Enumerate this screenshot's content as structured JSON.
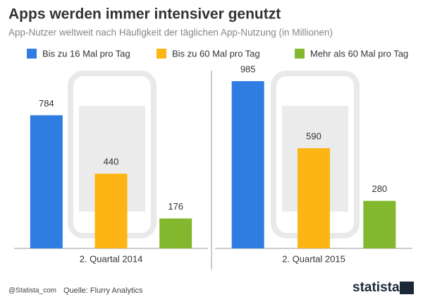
{
  "chart_data": {
    "type": "bar",
    "title": "Apps werden immer intensiver genutzt",
    "subtitle": "App-Nutzer weltweit nach Häufigkeit der täglichen App-Nutzung (in Millionen)",
    "categories": [
      "2. Quartal 2014",
      "2. Quartal 2015"
    ],
    "series": [
      {
        "name": "Bis zu 16 Mal pro Tag",
        "color": "#2f7de1",
        "values": [
          784,
          985
        ]
      },
      {
        "name": "Bis zu 60 Mal pro Tag",
        "color": "#fdb515",
        "values": [
          440,
          590
        ]
      },
      {
        "name": "Mehr als 60 Mal pro Tag",
        "color": "#83b82e",
        "values": [
          176,
          280
        ]
      }
    ],
    "credit": "@Statista_com",
    "source": "Quelle: Flurry Analytics",
    "brand": "statista"
  }
}
